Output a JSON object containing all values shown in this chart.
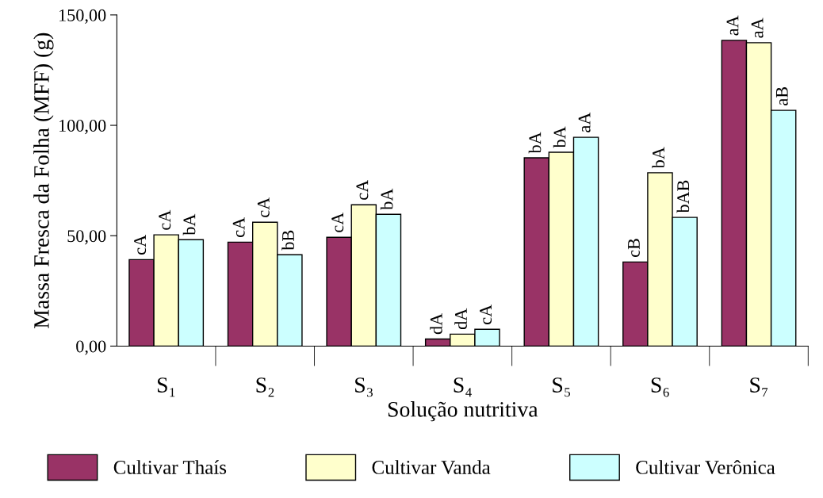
{
  "chart_data": {
    "type": "bar",
    "xlabel": "Solução nutritiva",
    "ylabel": "Massa Fresca da Folha (MFF) (g)",
    "categories": [
      "S₁",
      "S₂",
      "S₃",
      "S₄",
      "S₅",
      "S₆",
      "S₇"
    ],
    "series": [
      {
        "name": "Cultivar Thaís",
        "color": "#993366",
        "values": [
          39.2,
          47.1,
          49.3,
          3.2,
          85.3,
          38.1,
          138.5
        ],
        "value_labels": [
          "cA",
          "cA",
          "cA",
          "dA",
          "bA",
          "cB",
          "aA"
        ]
      },
      {
        "name": "Cultivar Vanda",
        "color": "#ffffcc",
        "values": [
          50.4,
          56.1,
          64.0,
          5.4,
          87.8,
          78.5,
          137.4
        ],
        "value_labels": [
          "cA",
          "cA",
          "cA",
          "dA",
          "bA",
          "bA",
          "aA"
        ]
      },
      {
        "name": "Cultivar Verônica",
        "color": "#ccffff",
        "values": [
          48.2,
          41.4,
          59.7,
          7.6,
          94.6,
          58.3,
          106.8
        ],
        "value_labels": [
          "bA",
          "bB",
          "bA",
          "cA",
          "aA",
          "bAB",
          "aB"
        ]
      }
    ],
    "ylim": [
      0,
      150
    ],
    "yticks": [
      {
        "value": 0,
        "label": "0,00"
      },
      {
        "value": 50,
        "label": "50,00"
      },
      {
        "value": 100,
        "label": "100,00"
      },
      {
        "value": 150,
        "label": "150,00"
      }
    ],
    "grid": false,
    "legend": "bottom"
  }
}
